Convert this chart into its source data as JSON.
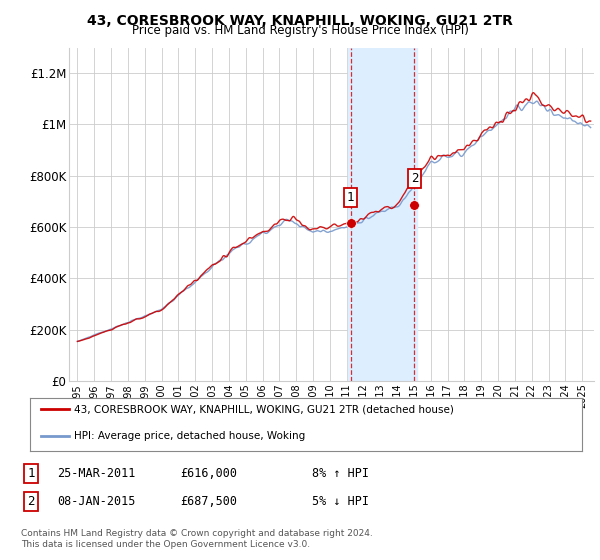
{
  "title": "43, CORESBROOK WAY, KNAPHILL, WOKING, GU21 2TR",
  "subtitle": "Price paid vs. HM Land Registry's House Price Index (HPI)",
  "ylabel_ticks": [
    "£0",
    "£200K",
    "£400K",
    "£600K",
    "£800K",
    "£1M",
    "£1.2M"
  ],
  "ytick_values": [
    0,
    200000,
    400000,
    600000,
    800000,
    1000000,
    1200000
  ],
  "ylim": [
    0,
    1300000
  ],
  "xlim_start": 1994.5,
  "xlim_end": 2025.7,
  "legend_line1": "43, CORESBROOK WAY, KNAPHILL, WOKING, GU21 2TR (detached house)",
  "legend_line2": "HPI: Average price, detached house, Woking",
  "sale1_label": "1",
  "sale1_date": "25-MAR-2011",
  "sale1_price": "£616,000",
  "sale1_hpi": "8% ↑ HPI",
  "sale1_year": 2011.23,
  "sale1_value": 616000,
  "sale2_label": "2",
  "sale2_date": "08-JAN-2015",
  "sale2_price": "£687,500",
  "sale2_hpi": "5% ↓ HPI",
  "sale2_year": 2015.03,
  "sale2_value": 687500,
  "highlight_start": 2011.1,
  "highlight_end": 2015.2,
  "line_color_red": "#cc0000",
  "line_color_blue": "#7799cc",
  "highlight_color": "#ddeeff",
  "footnote1": "Contains HM Land Registry data © Crown copyright and database right 2024.",
  "footnote2": "This data is licensed under the Open Government Licence v3.0.",
  "background_color": "#ffffff",
  "grid_color": "#cccccc"
}
